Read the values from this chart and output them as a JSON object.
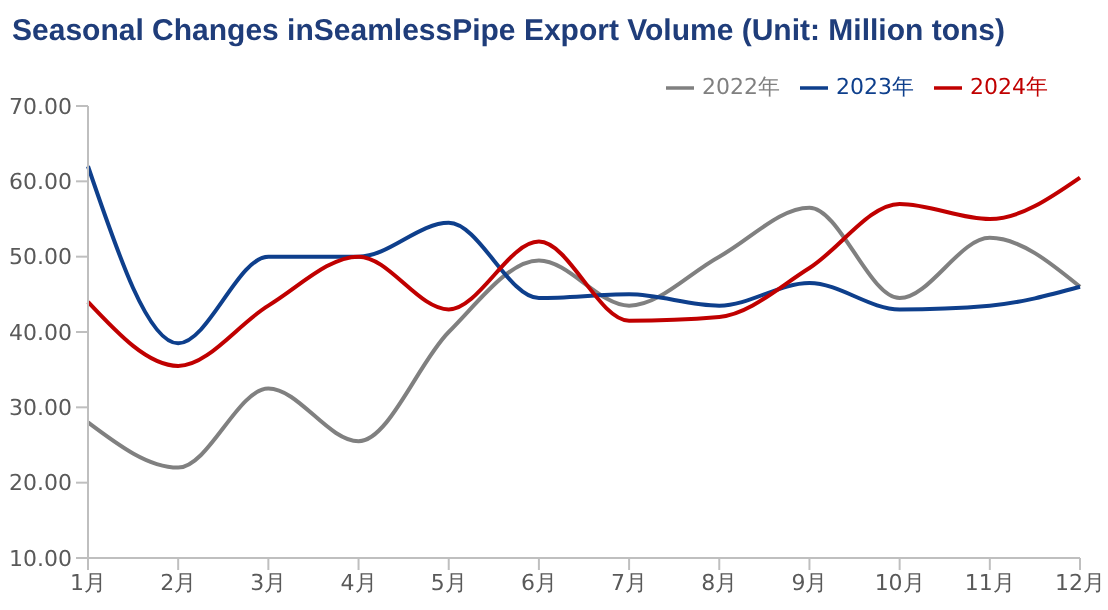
{
  "chart_data": {
    "type": "line",
    "title": "Seasonal Changes inSeamlessPipe Export Volume (Unit: Million tons)",
    "categories": [
      "1月",
      "2月",
      "3月",
      "4月",
      "5月",
      "6月",
      "7月",
      "8月",
      "9月",
      "10月",
      "11月",
      "12月"
    ],
    "series": [
      {
        "name": "2022年",
        "color": "#808080",
        "values": [
          28,
          22,
          32.5,
          25.5,
          40,
          49.5,
          43.5,
          50,
          56.5,
          44.5,
          52.5,
          46
        ]
      },
      {
        "name": "2023年",
        "color": "#0e3f8c",
        "values": [
          62,
          38.5,
          50,
          50,
          54.5,
          44.5,
          45,
          43.5,
          46.5,
          43,
          43.5,
          46
        ]
      },
      {
        "name": "2024年",
        "color": "#c00000",
        "values": [
          44,
          35.5,
          43.5,
          50,
          43,
          52,
          41.5,
          42,
          48.5,
          57,
          55,
          60.5
        ]
      }
    ],
    "ylim": [
      10,
      70
    ],
    "yticks": [
      {
        "value": 10,
        "label": "10.00"
      },
      {
        "value": 20,
        "label": "20.00"
      },
      {
        "value": 30,
        "label": "30.00"
      },
      {
        "value": 40,
        "label": "40.00"
      },
      {
        "value": 50,
        "label": "50.00"
      },
      {
        "value": 60,
        "label": "60.00"
      },
      {
        "value": 70,
        "label": "70.00"
      }
    ],
    "grid": false,
    "legend": "top right",
    "marker": "none",
    "line_style": "solid"
  }
}
